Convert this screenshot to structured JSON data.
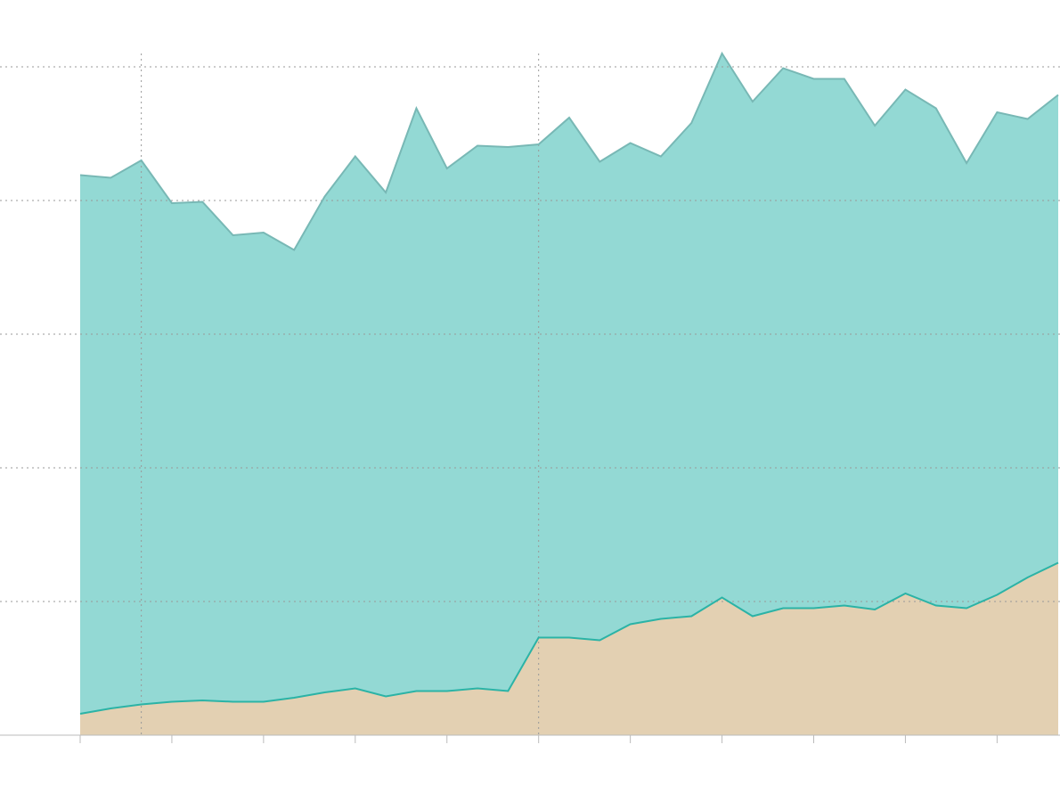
{
  "chart_data": {
    "type": "area",
    "stacked": true,
    "grid": true,
    "x": [
      0,
      1,
      2,
      3,
      4,
      5,
      6,
      7,
      8,
      9,
      10,
      11,
      12,
      13,
      14,
      15,
      16,
      17,
      18,
      19,
      20,
      21,
      22,
      23,
      24,
      25,
      26,
      27,
      28,
      29,
      30,
      31,
      32
    ],
    "xlim": [
      0,
      32
    ],
    "xticks": [
      0,
      3,
      6,
      9,
      12,
      15,
      18,
      21,
      24,
      27,
      30
    ],
    "vlines": [
      2,
      15
    ],
    "ylim": [
      0,
      5.1
    ],
    "yticks": [
      0,
      1,
      2,
      3,
      4,
      5
    ],
    "series": [
      {
        "color": "#e3d0b2",
        "line_color": "#2bb3a6",
        "values": [
          0.16,
          0.2,
          0.23,
          0.25,
          0.26,
          0.25,
          0.25,
          0.28,
          0.32,
          0.35,
          0.29,
          0.33,
          0.33,
          0.35,
          0.33,
          0.73,
          0.73,
          0.71,
          0.83,
          0.87,
          0.89,
          1.03,
          0.89,
          0.95,
          0.95,
          0.97,
          0.94,
          1.06,
          0.97,
          0.95,
          1.05,
          1.18,
          1.29
        ]
      },
      {
        "color": "#93d9d4",
        "line_color": "#78b8b5",
        "values": [
          4.03,
          3.97,
          4.07,
          3.73,
          3.73,
          3.49,
          3.51,
          3.35,
          3.71,
          3.98,
          3.77,
          4.36,
          3.91,
          4.06,
          4.07,
          3.69,
          3.89,
          3.58,
          3.6,
          3.46,
          3.69,
          4.07,
          3.85,
          4.04,
          3.96,
          3.94,
          3.62,
          3.77,
          3.72,
          3.33,
          3.61,
          3.43,
          3.5
        ]
      }
    ]
  }
}
